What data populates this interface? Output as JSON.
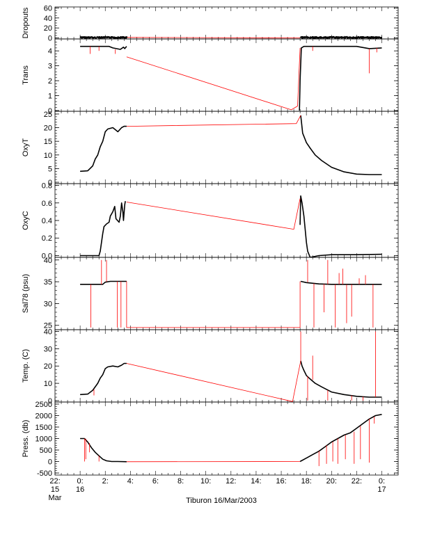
{
  "figure": {
    "xlabel": "Tiburon 16/Mar/2003",
    "colors": {
      "axes": "#000000",
      "data": "#000000",
      "flagged": "#ff0000",
      "bg": "#ffffff"
    }
  },
  "chart_data": [
    {
      "type": "line",
      "ylabel": "Dropouts",
      "ylim": [
        -2,
        62
      ],
      "yticks": [
        0,
        20,
        40,
        60
      ],
      "yticklabels": [
        "0",
        "20",
        "40",
        "60"
      ],
      "minor_step": 5,
      "minor_from": -5,
      "minor_to": 60,
      "series": [
        {
          "color": "#000000",
          "x": [
            0.0,
            3.75
          ],
          "y": [
            1,
            1
          ],
          "noise": 1.2
        },
        {
          "color": "#000000",
          "x": [
            17.55,
            24.0
          ],
          "y": [
            1,
            1
          ],
          "noise": 1.2
        },
        {
          "color": "#ff0000",
          "x": [
            3.75,
            17.5
          ],
          "y": [
            1,
            0
          ]
        }
      ]
    },
    {
      "type": "line",
      "ylabel": "Trans",
      "ylim": [
        -0.05,
        4.8
      ],
      "yticks": [
        0,
        1,
        2,
        3,
        4
      ],
      "yticklabels": [
        "0",
        "1",
        "2",
        "3",
        "4"
      ],
      "minor_step": 0.2,
      "minor_from": 0,
      "minor_to": 4.8,
      "series": [
        {
          "color": "#000000",
          "x": [
            0.0,
            2.3,
            2.6,
            3.2,
            3.45,
            3.55,
            3.7
          ],
          "y": [
            4.3,
            4.3,
            4.2,
            4.1,
            4.25,
            4.15,
            4.3
          ]
        },
        {
          "color": "#000000",
          "x": [
            17.45,
            17.5,
            17.6,
            17.8,
            20.0,
            22.0,
            23.0,
            24.0
          ],
          "y": [
            0.0,
            2.0,
            4.2,
            4.3,
            4.3,
            4.3,
            4.15,
            4.2
          ]
        },
        {
          "color": "#ff0000",
          "x": [
            3.7,
            16.8,
            17.3,
            17.5
          ],
          "y": [
            3.6,
            0.05,
            0.3,
            4.2
          ]
        }
      ],
      "spikes": [
        {
          "x": 0.8,
          "y0": 4.3,
          "y1": 3.8
        },
        {
          "x": 1.5,
          "y0": 4.3,
          "y1": 4.0
        },
        {
          "x": 2.8,
          "y0": 4.1,
          "y1": 3.8
        },
        {
          "x": 18.5,
          "y0": 4.3,
          "y1": 4.0
        },
        {
          "x": 23.0,
          "y0": 4.15,
          "y1": 2.5
        },
        {
          "x": 23.6,
          "y0": 4.2,
          "y1": 3.9
        }
      ]
    },
    {
      "type": "line",
      "ylabel": "OxyT",
      "ylim": [
        -0.5,
        26
      ],
      "yticks": [
        0,
        5,
        10,
        15,
        20,
        25
      ],
      "yticklabels": [
        "0",
        "5",
        "10",
        "15",
        "20",
        "25"
      ],
      "minor_step": 1,
      "minor_from": 0,
      "minor_to": 26,
      "series": [
        {
          "color": "#000000",
          "x": [
            0.0,
            0.6,
            1.0,
            1.2,
            1.4,
            1.6,
            1.8,
            2.0,
            2.2,
            2.6,
            3.0,
            3.3,
            3.5,
            3.7
          ],
          "y": [
            4,
            4.2,
            6,
            8.5,
            10,
            13,
            15,
            18.5,
            19.5,
            20,
            18.5,
            20,
            20.5,
            20.5
          ]
        },
        {
          "color": "#000000",
          "x": [
            17.55,
            17.6,
            17.7,
            18.0,
            18.3,
            18.7,
            19.2,
            20.0,
            21.0,
            22.0,
            23.0,
            24.0
          ],
          "y": [
            24.5,
            22.5,
            18.0,
            14.5,
            12.5,
            10.0,
            8.0,
            5.5,
            3.8,
            3.0,
            2.8,
            2.8
          ]
        },
        {
          "color": "#ff0000",
          "x": [
            3.7,
            17.2,
            17.55
          ],
          "y": [
            20.5,
            21.5,
            24.5
          ]
        }
      ]
    },
    {
      "type": "line",
      "ylabel": "OxyC",
      "ylim": [
        -0.02,
        0.82
      ],
      "yticks": [
        0,
        0.2,
        0.4,
        0.6,
        0.8
      ],
      "yticklabels": [
        "0.0",
        "0.2",
        "0.4",
        "0.6",
        "0.8"
      ],
      "minor_step": 0.05,
      "minor_from": 0,
      "minor_to": 0.8,
      "series": [
        {
          "color": "#000000",
          "x": [
            0.0,
            1.5,
            1.6,
            1.8,
            1.9,
            2.1,
            2.3,
            2.4,
            2.6,
            2.75,
            2.85,
            3.1,
            3.2,
            3.3,
            3.4,
            3.45,
            3.55,
            3.6
          ],
          "y": [
            0.0,
            0.0,
            0.05,
            0.25,
            0.33,
            0.36,
            0.38,
            0.45,
            0.5,
            0.56,
            0.42,
            0.38,
            0.45,
            0.6,
            0.5,
            0.4,
            0.58,
            0.62
          ]
        },
        {
          "color": "#000000",
          "x": [
            17.5,
            17.55,
            17.65,
            17.8,
            17.9,
            18.0,
            18.1,
            18.3,
            19.0,
            20.0,
            21.0,
            22.0,
            24.0
          ],
          "y": [
            0.35,
            0.68,
            0.6,
            0.45,
            0.3,
            0.15,
            0.05,
            -0.02,
            0.0,
            0.01,
            0.01,
            0.01,
            0.015
          ]
        },
        {
          "color": "#ff0000",
          "x": [
            3.7,
            17.0,
            17.5
          ],
          "y": [
            0.61,
            0.3,
            0.65
          ]
        }
      ]
    },
    {
      "type": "line",
      "ylabel": "Sal78 (psu)",
      "ylim": [
        24.0,
        40.6
      ],
      "yticks": [
        25,
        30,
        35,
        40
      ],
      "yticklabels": [
        "25",
        "30",
        "35",
        "40"
      ],
      "minor_step": 1,
      "minor_from": 24,
      "minor_to": 40,
      "series": [
        {
          "color": "#000000",
          "x": [
            0.0,
            1.8,
            2.0,
            2.4,
            3.7
          ],
          "y": [
            34.4,
            34.4,
            34.9,
            35.1,
            35.1
          ]
        },
        {
          "color": "#000000",
          "x": [
            17.55,
            18.0,
            19.0,
            20.0,
            24.0
          ],
          "y": [
            35.1,
            34.8,
            34.5,
            34.4,
            34.4
          ]
        },
        {
          "color": "#ff0000",
          "x": [
            3.7,
            3.7,
            17.5,
            17.5
          ],
          "y": [
            35.1,
            24.5,
            24.5,
            35.1
          ]
        }
      ],
      "spikes": [
        {
          "x": 0.85,
          "y0": 34.4,
          "y1": 24.5
        },
        {
          "x": 1.7,
          "y0": 34.4,
          "y1": 40.0
        },
        {
          "x": 2.1,
          "y0": 35.0,
          "y1": 40.0
        },
        {
          "x": 2.95,
          "y0": 35.1,
          "y1": 24.5
        },
        {
          "x": 3.25,
          "y0": 35.1,
          "y1": 24.5
        },
        {
          "x": 18.1,
          "y0": 34.9,
          "y1": 40.0
        },
        {
          "x": 18.6,
          "y0": 34.6,
          "y1": 24.5
        },
        {
          "x": 19.4,
          "y0": 34.5,
          "y1": 28.0
        },
        {
          "x": 19.7,
          "y0": 34.4,
          "y1": 40.0
        },
        {
          "x": 20.3,
          "y0": 34.4,
          "y1": 24.5
        },
        {
          "x": 20.6,
          "y0": 34.4,
          "y1": 37.0
        },
        {
          "x": 20.9,
          "y0": 34.4,
          "y1": 38.0
        },
        {
          "x": 21.2,
          "y0": 34.4,
          "y1": 25.5
        },
        {
          "x": 21.6,
          "y0": 34.4,
          "y1": 27.0
        },
        {
          "x": 22.2,
          "y0": 34.4,
          "y1": 35.8
        },
        {
          "x": 22.7,
          "y0": 34.4,
          "y1": 36.5
        },
        {
          "x": 23.3,
          "y0": 34.4,
          "y1": 24.5
        }
      ]
    },
    {
      "type": "line",
      "ylabel": "Temp. (C)",
      "ylim": [
        -0.8,
        41
      ],
      "yticks": [
        0,
        10,
        20,
        30,
        40
      ],
      "yticklabels": [
        "0",
        "10",
        "20",
        "30",
        "40"
      ],
      "minor_step": 2,
      "minor_from": 0,
      "minor_to": 40,
      "series": [
        {
          "color": "#000000",
          "x": [
            0.0,
            0.6,
            1.0,
            1.2,
            1.4,
            1.6,
            1.8,
            2.0,
            2.2,
            2.6,
            3.0,
            3.3,
            3.5,
            3.7
          ],
          "y": [
            3.5,
            3.8,
            6,
            8,
            10,
            13,
            15,
            18.5,
            19.5,
            20,
            19.5,
            20.5,
            21.5,
            21.5
          ]
        },
        {
          "color": "#000000",
          "x": [
            17.55,
            17.65,
            17.8,
            18.0,
            18.3,
            18.7,
            19.2,
            20.0,
            21.0,
            22.0,
            23.0,
            24.0
          ],
          "y": [
            23.0,
            20.0,
            17.5,
            14.5,
            12.5,
            10.0,
            8.0,
            5.0,
            3.5,
            2.5,
            2.0,
            2.0
          ]
        },
        {
          "color": "#ff0000",
          "x": [
            3.7,
            16.9,
            17.55
          ],
          "y": [
            21.5,
            -0.5,
            23.0
          ]
        }
      ],
      "spikes": [
        {
          "x": 1.1,
          "y0": 6.5,
          "y1": 3.0
        },
        {
          "x": 17.55,
          "y0": 23.0,
          "y1": 40.0
        },
        {
          "x": 18.1,
          "y0": 14.0,
          "y1": 0.0
        },
        {
          "x": 18.5,
          "y0": 12.0,
          "y1": 26.0
        },
        {
          "x": 19.7,
          "y0": 6.0,
          "y1": 0.0
        },
        {
          "x": 21.6,
          "y0": 3.0,
          "y1": 0.0
        },
        {
          "x": 22.5,
          "y0": 2.3,
          "y1": 0.0
        },
        {
          "x": 23.5,
          "y0": 2.0,
          "y1": 40.0
        }
      ]
    },
    {
      "type": "line",
      "ylabel": "Press. (db)",
      "ylim": [
        -590,
        2590
      ],
      "yticks": [
        -500,
        0,
        500,
        1000,
        1500,
        2000,
        2500
      ],
      "yticklabels": [
        "-500",
        "0",
        "500",
        "1000",
        "1500",
        "2000",
        "2500"
      ],
      "minor_step": 100,
      "minor_from": -500,
      "minor_to": 2500,
      "xaxis": true,
      "series": [
        {
          "color": "#000000",
          "x": [
            0.0,
            0.35,
            0.6,
            0.9,
            1.2,
            1.5,
            1.8,
            2.1,
            2.5,
            3.0,
            3.7
          ],
          "y": [
            1000,
            1000,
            850,
            600,
            400,
            250,
            100,
            30,
            0,
            0,
            -10
          ]
        },
        {
          "color": "#000000",
          "x": [
            17.5,
            18.0,
            18.5,
            19.0,
            19.5,
            20.0,
            20.5,
            21.0,
            21.5,
            22.0,
            22.5,
            23.0,
            23.5,
            24.0
          ],
          "y": [
            0,
            150,
            300,
            450,
            650,
            850,
            1000,
            1150,
            1250,
            1450,
            1650,
            1850,
            2000,
            2050
          ]
        },
        {
          "color": "#ff0000",
          "x": [
            3.7,
            17.5
          ],
          "y": [
            -10,
            0
          ]
        }
      ],
      "spikes": [
        {
          "x": 0.35,
          "y0": 1000,
          "y1": 0
        },
        {
          "x": 0.45,
          "y0": 990,
          "y1": 100
        },
        {
          "x": 0.75,
          "y0": 800,
          "y1": 400
        },
        {
          "x": 1.5,
          "y0": 250,
          "y1": 0
        },
        {
          "x": 19.0,
          "y0": 450,
          "y1": -200
        },
        {
          "x": 19.6,
          "y0": 700,
          "y1": -100
        },
        {
          "x": 20.1,
          "y0": 860,
          "y1": 0
        },
        {
          "x": 20.5,
          "y0": 1000,
          "y1": -100
        },
        {
          "x": 21.1,
          "y0": 1150,
          "y1": 100
        },
        {
          "x": 21.8,
          "y0": 1300,
          "y1": -100
        },
        {
          "x": 22.3,
          "y0": 1550,
          "y1": 100
        },
        {
          "x": 23.0,
          "y0": 1850,
          "y1": -50
        },
        {
          "x": 23.4,
          "y0": 1950,
          "y1": 1650
        }
      ],
      "xlim": [
        -2.0,
        25.3
      ],
      "xticks": [
        -2,
        0,
        2,
        4,
        6,
        8,
        10,
        12,
        14,
        16,
        18,
        20,
        22,
        24
      ],
      "xticklabels": [
        [
          "22:",
          "15",
          "Mar"
        ],
        [
          "0:",
          "16"
        ],
        [
          "2:"
        ],
        [
          "4:"
        ],
        [
          "6:"
        ],
        [
          "8:"
        ],
        [
          "10:"
        ],
        [
          "12:"
        ],
        [
          "14:"
        ],
        [
          "16:"
        ],
        [
          "18:"
        ],
        [
          "20:"
        ],
        [
          "22:"
        ],
        [
          "0:",
          "17"
        ]
      ]
    }
  ]
}
